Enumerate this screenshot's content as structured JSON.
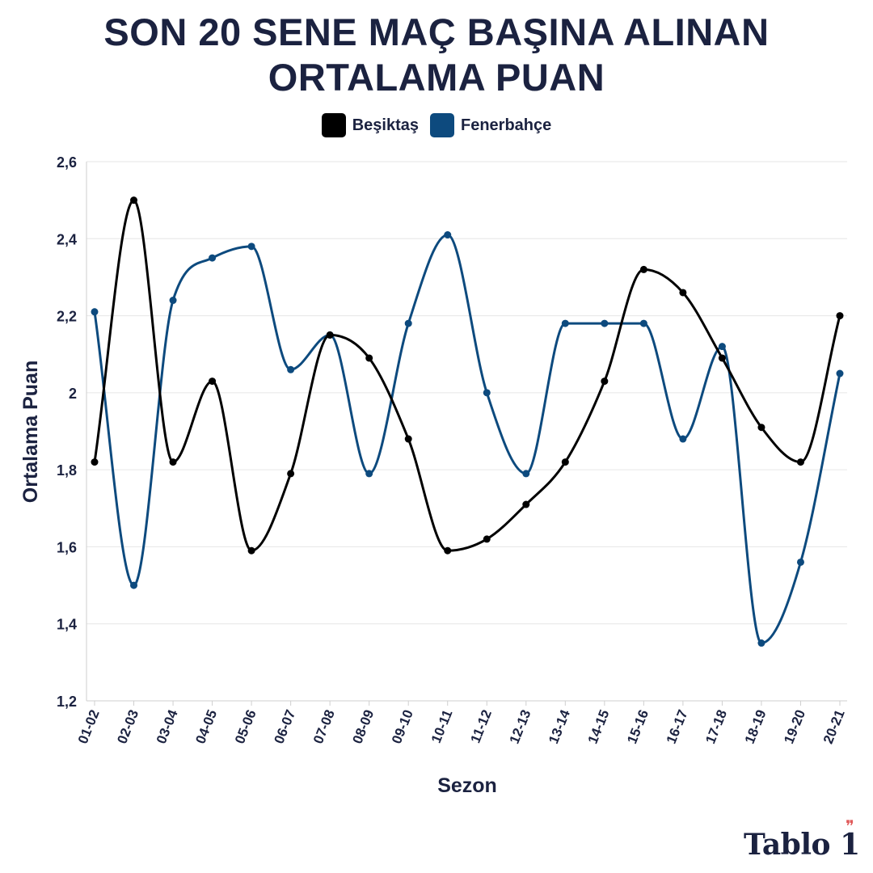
{
  "title": "SON 20 SENE MAÇ BAŞINA ALINAN ORTALAMA PUAN",
  "brand": "Tablo 1",
  "chart_data": {
    "type": "line",
    "title": "SON 20 SENE MAÇ BAŞINA ALINAN ORTALAMA PUAN",
    "xlabel": "Sezon",
    "ylabel": "Ortalama Puan",
    "ylim": [
      1.2,
      2.6
    ],
    "yticks": [
      "1,2",
      "1,4",
      "1,6",
      "1,8",
      "2",
      "2,2",
      "2,4",
      "2,6"
    ],
    "grid": true,
    "legend_position": "top-center",
    "categories": [
      "01-02",
      "02-03",
      "03-04",
      "04-05",
      "05-06",
      "06-07",
      "07-08",
      "08-09",
      "09-10",
      "10-11",
      "11-12",
      "12-13",
      "13-14",
      "14-15",
      "15-16",
      "16-17",
      "17-18",
      "18-19",
      "19-20",
      "20-21"
    ],
    "series": [
      {
        "name": "Beşiktaş",
        "color": "#000000",
        "values": [
          1.82,
          2.5,
          1.82,
          2.03,
          1.59,
          1.79,
          2.15,
          2.09,
          1.88,
          1.59,
          1.62,
          1.71,
          1.82,
          2.03,
          2.32,
          2.26,
          2.09,
          1.91,
          1.82,
          2.2
        ]
      },
      {
        "name": "Fenerbahçe",
        "color": "#0d4a7e",
        "values": [
          2.21,
          1.5,
          2.24,
          2.35,
          2.38,
          2.06,
          2.15,
          1.79,
          2.18,
          2.41,
          2.0,
          1.79,
          2.18,
          2.18,
          2.18,
          1.88,
          2.12,
          1.35,
          1.56,
          2.05
        ]
      }
    ]
  }
}
